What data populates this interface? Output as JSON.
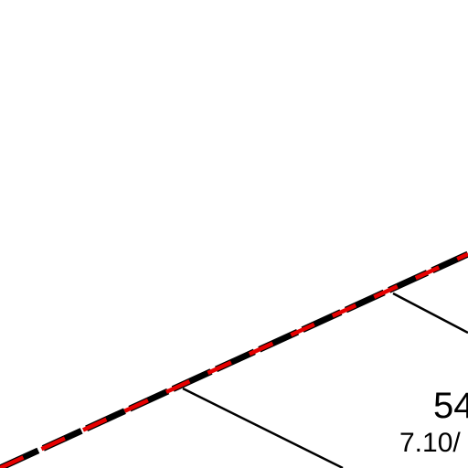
{
  "map": {
    "background_color": "#ffffff",
    "boundary": {
      "style": "dashed",
      "colors": [
        "#000000",
        "#e60000"
      ]
    },
    "parcel_line_color": "#000000",
    "parcel_label": {
      "number": "54",
      "area": "7.10/"
    }
  }
}
